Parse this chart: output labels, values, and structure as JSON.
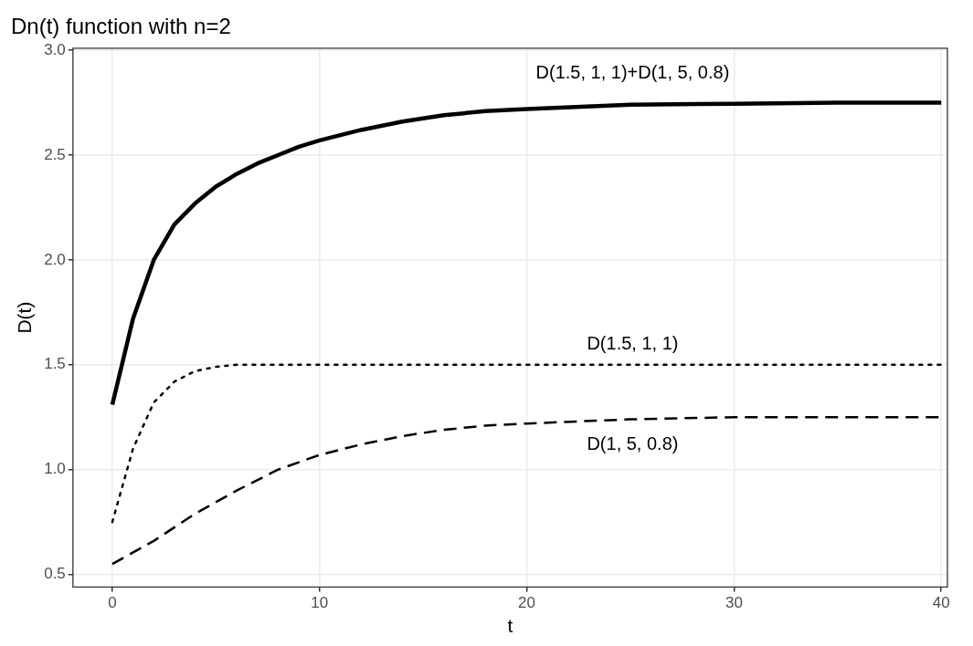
{
  "chart_data": {
    "type": "line",
    "title": "Dn(t) function with n=2",
    "xlabel": "t",
    "ylabel": "D(t)",
    "xlim": [
      -1.9,
      40.3
    ],
    "xticks": [
      0,
      10,
      20,
      30,
      40
    ],
    "ylim": [
      0.44,
      3.01
    ],
    "yticks": [
      0.5,
      {
        "value": 1,
        "label": "1.0"
      },
      1.5,
      {
        "value": 2,
        "label": "2.0"
      },
      2.5,
      {
        "value": 3,
        "label": "3.0"
      }
    ],
    "grid": true,
    "legend": false,
    "marker": "none",
    "series": [
      {
        "name": "D(1.5, 1, 1)+D(1, 5, 0.8)",
        "color": "#000000",
        "line_style": "solid",
        "x": [
          0,
          1,
          2,
          3,
          4,
          5,
          6,
          7,
          8,
          9,
          10,
          12,
          14,
          16,
          18,
          20,
          25,
          30,
          35,
          40
        ],
        "values": [
          1.31,
          1.72,
          2.0,
          2.17,
          2.27,
          2.35,
          2.41,
          2.46,
          2.5,
          2.54,
          2.57,
          2.62,
          2.66,
          2.69,
          2.71,
          2.72,
          2.74,
          2.745,
          2.75,
          2.75
        ]
      },
      {
        "name": "D(1.5, 1, 1)",
        "color": "#000000",
        "line_style": "dotted",
        "x": [
          0,
          1,
          2,
          3,
          4,
          5,
          6,
          10,
          20,
          30,
          40
        ],
        "values": [
          0.75,
          1.1,
          1.32,
          1.42,
          1.47,
          1.49,
          1.5,
          1.5,
          1.5,
          1.5,
          1.5
        ]
      },
      {
        "name": "D(1, 5, 0.8)",
        "color": "#000000",
        "line_style": "dashed",
        "x": [
          0,
          2,
          4,
          6,
          8,
          10,
          12,
          14,
          16,
          18,
          20,
          25,
          30,
          35,
          40
        ],
        "values": [
          0.55,
          0.66,
          0.79,
          0.9,
          1.0,
          1.07,
          1.12,
          1.16,
          1.19,
          1.21,
          1.22,
          1.24,
          1.25,
          1.25,
          1.25
        ]
      }
    ]
  }
}
